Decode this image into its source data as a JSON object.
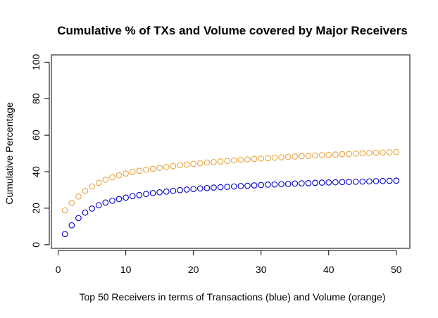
{
  "chart_data": {
    "type": "scatter",
    "title": "Cumulative % of TXs and Volume covered by Major Receivers",
    "xlabel": "Top 50 Receivers in terms of Transactions (blue) and Volume (orange)",
    "ylabel": "Cumulative Percentage",
    "xlim": [
      -1,
      52
    ],
    "ylim": [
      -2,
      104
    ],
    "xticks": [
      0,
      10,
      20,
      30,
      40,
      50
    ],
    "yticks": [
      0,
      20,
      40,
      60,
      80,
      100
    ],
    "x": [
      1,
      2,
      3,
      4,
      5,
      6,
      7,
      8,
      9,
      10,
      11,
      12,
      13,
      14,
      15,
      16,
      17,
      18,
      19,
      20,
      21,
      22,
      23,
      24,
      25,
      26,
      27,
      28,
      29,
      30,
      31,
      32,
      33,
      34,
      35,
      36,
      37,
      38,
      39,
      40,
      41,
      42,
      43,
      44,
      45,
      46,
      47,
      48,
      49,
      50
    ],
    "series": [
      {
        "color": "#0000cc",
        "values": [
          5.8,
          10.6,
          14.6,
          17.6,
          19.8,
          21.6,
          23.1,
          24.1,
          25.0,
          25.8,
          26.6,
          27.2,
          27.8,
          28.3,
          28.7,
          29.1,
          29.5,
          29.9,
          30.2,
          30.5,
          30.8,
          31.0,
          31.3,
          31.5,
          31.7,
          31.9,
          32.1,
          32.3,
          32.5,
          32.7,
          32.9,
          33.0,
          33.2,
          33.3,
          33.5,
          33.6,
          33.7,
          33.9,
          34.0,
          34.1,
          34.2,
          34.3,
          34.4,
          34.5,
          34.6,
          34.7,
          34.8,
          34.9,
          35.0,
          35.1
        ]
      },
      {
        "color": "#e8a33d",
        "values": [
          18.8,
          22.9,
          26.4,
          29.5,
          31.9,
          33.9,
          35.6,
          36.9,
          38.0,
          39.0,
          39.8,
          40.5,
          41.1,
          41.6,
          42.1,
          42.6,
          43.1,
          43.5,
          43.9,
          44.3,
          44.6,
          45.0,
          45.3,
          45.6,
          45.9,
          46.2,
          46.5,
          46.7,
          47.0,
          47.2,
          47.4,
          47.7,
          47.9,
          48.1,
          48.3,
          48.5,
          48.7,
          48.9,
          49.1,
          49.2,
          49.4,
          49.6,
          49.7,
          49.9,
          50.1,
          50.2,
          50.4,
          50.5,
          50.6,
          50.8
        ]
      }
    ],
    "grid": false,
    "legend": "none"
  }
}
